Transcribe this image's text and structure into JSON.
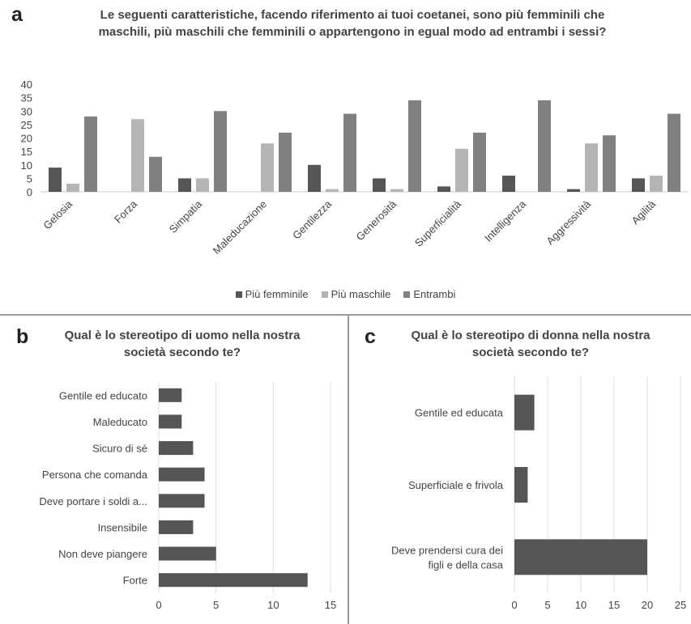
{
  "panels": {
    "a": {
      "letter": "a",
      "title": "Le seguenti caratteristiche, facendo riferimento ai tuoi coetanei, sono più femminili che maschili, più maschili che femminili o appartengono in egual modo ad entrambi i sessi?"
    },
    "b": {
      "letter": "b",
      "title": "Qual è lo stereotipo di uomo nella nostra società secondo te?"
    },
    "c": {
      "letter": "c",
      "title": "Qual è lo stereotipo di donna nella nostra società secondo te?"
    }
  },
  "colors": {
    "femminile": "#555555",
    "maschile": "#b5b5b5",
    "entrambi": "#808080",
    "bar": "#555555",
    "grid": "#dcdcdc"
  },
  "chart_data": [
    {
      "type": "bar",
      "orientation": "vertical",
      "title": "Le seguenti caratteristiche, facendo riferimento ai tuoi coetanei, sono più femminili che maschili, più maschili che femminili o appartengono in egual modo ad entrambi i sessi?",
      "categories": [
        "Gelosia",
        "Forza",
        "Simpatia",
        "Maleducazione",
        "Gentilezza",
        "Generosità",
        "Superficialità",
        "Intelligenza",
        "Aggressività",
        "Agilità"
      ],
      "series": [
        {
          "name": "Più femminile",
          "values": [
            9,
            0,
            5,
            0,
            10,
            5,
            2,
            6,
            1,
            5
          ]
        },
        {
          "name": "Più maschile",
          "values": [
            3,
            27,
            5,
            18,
            1,
            1,
            16,
            0,
            18,
            6
          ]
        },
        {
          "name": "Entrambi",
          "values": [
            28,
            13,
            30,
            22,
            29,
            34,
            22,
            34,
            21,
            29
          ]
        }
      ],
      "ylim": [
        0,
        40
      ],
      "yticks": [
        "0",
        "5",
        "10",
        "15",
        "20",
        "25",
        "30",
        "35",
        "40"
      ],
      "grid": false,
      "legend": "bottom"
    },
    {
      "type": "bar",
      "orientation": "horizontal",
      "title": "Qual è lo stereotipo di uomo nella nostra società secondo te?",
      "categories": [
        "Gentile ed educato",
        "Maleducato",
        "Sicuro di sé",
        "Persona che comanda",
        "Deve portare i soldi a...",
        "Insensibile",
        "Non deve piangere",
        "Forte"
      ],
      "values": [
        2,
        2,
        3,
        4,
        4,
        3,
        5,
        13
      ],
      "xlim": [
        0,
        15
      ],
      "xticks": [
        "0",
        "5",
        "10",
        "15"
      ],
      "grid": true
    },
    {
      "type": "bar",
      "orientation": "horizontal",
      "title": "Qual è lo stereotipo di donna nella nostra società secondo te?",
      "categories": [
        [
          "Gentile ed educata"
        ],
        [
          "Superficiale e frivola"
        ],
        [
          "Deve prendersi cura dei",
          "figli e della casa"
        ]
      ],
      "values": [
        3,
        2,
        20
      ],
      "xlim": [
        0,
        25
      ],
      "xticks": [
        "0",
        "5",
        "10",
        "15",
        "20",
        "25"
      ],
      "grid": true
    }
  ]
}
